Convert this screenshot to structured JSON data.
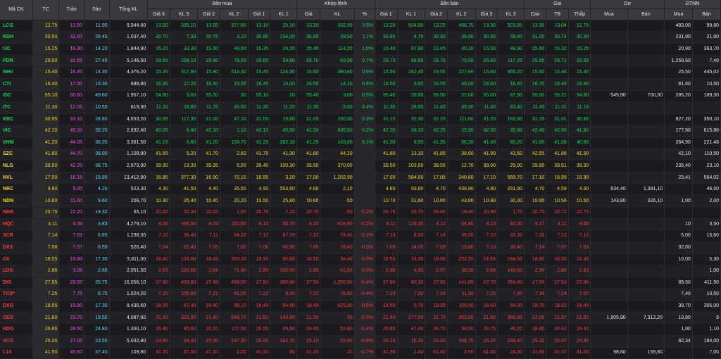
{
  "headers": {
    "symbol": "Mã CK",
    "ref": "TC",
    "ceil": "Trần",
    "floor": "Sàn",
    "total_vol": "Tổng KL",
    "buy_group": "Bên mua",
    "match_group": "Khớp lệnh",
    "sell_group": "Bên bán",
    "price_group": "Giá",
    "remain_group": "Dư",
    "foreign_group": "ĐTNN",
    "buy_cols": [
      "Giá 3",
      "KL 3",
      "Giá 2",
      "KL 2",
      "Giá 1",
      "KL 1"
    ],
    "match_cols": [
      "Giá",
      "KL",
      "%"
    ],
    "sell_cols": [
      "Giá 1",
      "KL 1",
      "Giá 2",
      "KL 2",
      "Giá 3",
      "KL 3"
    ],
    "price_cols": [
      "Cao",
      "TB",
      "Thấp"
    ],
    "remain_cols": [
      "Mua",
      "Bán"
    ],
    "foreign_cols": [
      "Mua",
      "Bán"
    ]
  },
  "colors": {
    "up": "#00e04b",
    "down": "#ff3b3b",
    "ref": "#f5d700",
    "ceil": "#ff4bf0",
    "floor": "#5ad8ff"
  },
  "rows": [
    {
      "sym": "LCG",
      "s": "u",
      "ref": "12.75",
      "ceil": "13.60",
      "floor": "11.90",
      "vol": "9,944.60",
      "b3": "13.00",
      "bv3": "335,10",
      "b2": "13.05",
      "bv2": "377,50",
      "b1": "13.10",
      "bv1": "25,10",
      "mp": "13.20",
      "mv": "332,90",
      "pct": "3.5%",
      "a1": "13.20",
      "av1": "524,60",
      "a2": "13.25",
      "av2": "466,70",
      "a3": "13.30",
      "av3": "523,60",
      "hi": "13.30",
      "avg": "13.04",
      "lo": "12.75",
      "rb": "",
      "rs": "",
      "fb": "483,00",
      "fs": "99,80"
    },
    {
      "sym": "KDH",
      "s": "u",
      "ref": "30.50",
      "ceil": "32.60",
      "floor": "28.40",
      "vol": "1,037,40",
      "b3": "30.70",
      "bv3": "7,30",
      "b2": "30.75",
      "bv2": "3,10",
      "b1": "30.80",
      "bv1": "234,00",
      "mp": "30.85",
      "mv": "39,50",
      "pct": "1.1%",
      "a1": "30.85",
      "av1": "4,70",
      "a2": "30.90",
      "av2": "39,90",
      "a3": "30.95",
      "av3": "39,40",
      "hi": "31.00",
      "avg": "30.74",
      "lo": "30.50",
      "rb": "",
      "rs": "",
      "fb": "231,90",
      "fs": "21,60"
    },
    {
      "sym": "IJC",
      "s": "u",
      "ref": "15.25",
      "ceil": "16.30",
      "floor": "14.20",
      "vol": "1,844,90",
      "b3": "15.25",
      "bv3": "33,30",
      "b2": "15.30",
      "bv2": "49,50",
      "b1": "15.35",
      "bv1": "24,20",
      "mp": "15.40",
      "mv": "114,20",
      "pct": "1.0%",
      "a1": "15.40",
      "av1": "97,80",
      "a2": "15.45",
      "av2": "40,20",
      "a3": "15.50",
      "av3": "48,90",
      "hi": "15.60",
      "avg": "15.32",
      "lo": "15.25",
      "rb": "",
      "rs": "",
      "fb": "20,90",
      "fs": "363,70"
    },
    {
      "sym": "PDR",
      "s": "u",
      "ref": "29.50",
      "ceil": "31.55",
      "floor": "27.45",
      "vol": "5,146,50",
      "b3": "29.55",
      "bv3": "208,10",
      "b2": "29.60",
      "bv2": "78,50",
      "b1": "29.65",
      "bv1": "59,80",
      "mp": "29.70",
      "mv": "69,90",
      "pct": "0.7%",
      "a1": "29.70",
      "av1": "66,50",
      "a2": "29.75",
      "av2": "70,50",
      "a3": "29.80",
      "av3": "117,20",
      "hi": "29.95",
      "avg": "29.71",
      "lo": "29.55",
      "rb": "",
      "rs": "",
      "fb": "1,259,60",
      "fs": "7,40"
    },
    {
      "sym": "NHV",
      "s": "u",
      "ref": "15.40",
      "ceil": "16.45",
      "floor": "14.35",
      "vol": "4,376,20",
      "b3": "15.35",
      "bv3": "317,80",
      "b2": "15.40",
      "bv2": "513,30",
      "b1": "15.45",
      "bv1": "124,90",
      "mp": "15.50",
      "mv": "360,80",
      "pct": "0.6%",
      "a1": "15.50",
      "av1": "162,40",
      "a2": "15.55",
      "av2": "227,60",
      "a3": "15.60",
      "av3": "555,20",
      "hi": "15.60",
      "avg": "15.46",
      "lo": "15.40",
      "rb": "",
      "rs": "",
      "fb": "25,50",
      "fs": "445,02"
    },
    {
      "sym": "CTI",
      "s": "u",
      "ref": "16.40",
      "ceil": "17.50",
      "floor": "15.30",
      "vol": "688,80",
      "b3": "16.35",
      "bv3": "17,20",
      "b2": "16.40",
      "bv2": "23,00",
      "b1": "16.45",
      "bv1": "14,00",
      "mp": "16.50",
      "mv": "14,10",
      "pct": "0.6%",
      "a1": "16.50",
      "av1": "3,90",
      "a2": "16.55",
      "av2": "48,00",
      "a3": "16.60",
      "av3": "16,60",
      "hi": "16.70",
      "avg": "16.49",
      "lo": "16.40",
      "rb": "",
      "rs": "",
      "fb": "81,60",
      "fs": "10,50"
    },
    {
      "sym": "IDC",
      "s": "u",
      "ref": "55.10",
      "ceil": "60.60",
      "floor": "49.60",
      "vol": "1,957,10",
      "b3": "54.90",
      "bv3": "3,00",
      "b2": "55.00",
      "bv2": "30",
      "b1": "55.10",
      "bv1": "20",
      "mp": "55.40",
      "mv": "3,00",
      "pct": "0.5%",
      "a1": "55.40",
      "av1": "20,60",
      "a2": "55.50",
      "av2": "37,00",
      "a3": "55.60",
      "av3": "67,90",
      "hi": "55.90",
      "avg": "55.21",
      "lo": "54.60",
      "rb": "545,90",
      "rs": "700,30",
      "fb": "285,20",
      "fs": "189,30"
    },
    {
      "sym": "ITC",
      "s": "u",
      "ref": "11.30",
      "ceil": "12.05",
      "floor": "10.55",
      "vol": "619,30",
      "b3": "11.20",
      "bv3": "19,80",
      "b2": "11.25",
      "bv2": "45,60",
      "b1": "11.30",
      "bv1": "11,20",
      "mp": "11.35",
      "mv": "5,00",
      "pct": "0.4%",
      "a1": "11.35",
      "av1": "26,90",
      "a2": "11.40",
      "av2": "49,30",
      "a3": "11.45",
      "av3": "63,40",
      "hi": "11.45",
      "avg": "11.31",
      "lo": "11.15",
      "rb": "",
      "rs": "",
      "fb": "",
      "fs": ""
    },
    {
      "sym": "KBC",
      "s": "u",
      "ref": "30.95",
      "ceil": "33.10",
      "floor": "28.80",
      "vol": "4,653,20",
      "b3": "30.95",
      "bv3": "117,30",
      "b2": "31.00",
      "bv2": "47,10",
      "b1": "31.05",
      "bv1": "19,80",
      "mp": "31.05",
      "mv": "190,50",
      "pct": "0.3%",
      "a1": "31.10",
      "av1": "32,30",
      "a2": "31.15",
      "av2": "111,60",
      "a3": "31.20",
      "av3": "183,90",
      "hi": "31.25",
      "avg": "31.01",
      "lo": "30.85",
      "rb": "",
      "rs": "",
      "fb": "827,20",
      "fs": "350,10"
    },
    {
      "sym": "VIC",
      "s": "u",
      "ref": "42.10",
      "ceil": "45.00",
      "floor": "39.20",
      "vol": "2,692,40",
      "b3": "42.05",
      "bv3": "6,40",
      "b2": "42.10",
      "bv2": "1,10",
      "b1": "42.15",
      "bv1": "45,50",
      "mp": "42.20",
      "mv": "435,50",
      "pct": "0.2%",
      "a1": "42.20",
      "av1": "24,10",
      "a2": "42.25",
      "av2": "15,90",
      "a3": "42.30",
      "av3": "35,90",
      "hi": "42.40",
      "avg": "42.00",
      "lo": "41.80",
      "rb": "",
      "rs": "",
      "fb": "177,60",
      "fs": "615,80"
    },
    {
      "sym": "VHM",
      "s": "u",
      "ref": "41.20",
      "ceil": "44.05",
      "floor": "38.35",
      "vol": "3,361,50",
      "b3": "41.15",
      "bv3": "6,80",
      "b2": "41.20",
      "bv2": "158,70",
      "b1": "41.25",
      "bv1": "262,10",
      "mp": "41.25",
      "mv": "143,00",
      "pct": "0.1%",
      "a1": "41.30",
      "av1": "6,90",
      "a2": "41.35",
      "av2": "56,30",
      "a3": "41.40",
      "av3": "89,20",
      "hi": "41.60",
      "avg": "41.08",
      "lo": "40.80",
      "rb": "",
      "rs": "",
      "fb": "264,90",
      "fs": "221,46"
    },
    {
      "sym": "SZC",
      "s": "r",
      "ref": "41.80",
      "ceil": "44.70",
      "floor": "38.90",
      "vol": "1,109,90",
      "b3": "41.65",
      "bv3": "5,20",
      "b2": "41.70",
      "bv2": "2,60",
      "b1": "41.75",
      "bv1": "41,30",
      "mp": "41.80",
      "mv": "44,10",
      "pct": "",
      "a1": "41.80",
      "av1": "13,10",
      "a2": "41.85",
      "av2": "38,60",
      "a3": "41.90",
      "av3": "43,50",
      "hi": "42.55",
      "avg": "41.86",
      "lo": "41.50",
      "rb": "",
      "rs": "",
      "fb": "42,10",
      "fs": "110,50"
    },
    {
      "sym": "NLG",
      "s": "r",
      "ref": "39.50",
      "ceil": "42.25",
      "floor": "36.75",
      "vol": "2,673,90",
      "b3": "39.30",
      "bv3": "13,30",
      "b2": "39.35",
      "bv2": "6,00",
      "b1": "39.40",
      "bv1": "100,30",
      "mp": "39.50",
      "mv": "370,00",
      "pct": "",
      "a1": "39.50",
      "av1": "103,50",
      "a2": "39.55",
      "av2": "12,70",
      "a3": "39.60",
      "av3": "29,00",
      "hi": "39.90",
      "avg": "39.51",
      "lo": "39.30",
      "rb": "",
      "rs": "",
      "fb": "235,40",
      "fs": "23,10"
    },
    {
      "sym": "NVL",
      "s": "r",
      "ref": "17.00",
      "ceil": "18.15",
      "floor": "15.85",
      "vol": "13,412,90",
      "b3": "16.85",
      "bv3": "377,30",
      "b2": "16.90",
      "bv2": "72,10",
      "b1": "16.95",
      "bv1": "3,20",
      "mp": "17.00",
      "mv": "1,202,90",
      "pct": "",
      "a1": "17.00",
      "av1": "584,00",
      "a2": "17.05",
      "av2": "240,60",
      "a3": "17.10",
      "av3": "559,70",
      "hi": "17.10",
      "avg": "16.99",
      "lo": "16.90",
      "rb": "",
      "rs": "",
      "fb": "29,41",
      "fs": "564,02"
    },
    {
      "sym": "NRC",
      "s": "r",
      "ref": "4.60",
      "ceil": "5.00",
      "floor": "4.20",
      "vol": "523,30",
      "b3": "4.30",
      "bv3": "41,50",
      "b2": "4.40",
      "bv2": "35,50",
      "b1": "4.50",
      "bv1": "553,60",
      "mp": "4.60",
      "mv": "2,10",
      "pct": "",
      "a1": "4.60",
      "av1": "93,60",
      "a2": "4.70",
      "av2": "439,90",
      "a3": "4.80",
      "av3": "251,90",
      "hi": "4.70",
      "avg": "4.59",
      "lo": "4.50",
      "rb": "634,40",
      "rs": "1,391,10",
      "fb": "",
      "fs": "46,50"
    },
    {
      "sym": "NDN",
      "s": "r",
      "ref": "10.60",
      "ceil": "11.60",
      "floor": "9.60",
      "vol": "209,70",
      "b3": "10.30",
      "bv3": "26,40",
      "b2": "10.40",
      "bv2": "20,20",
      "b1": "10.50",
      "bv1": "25,80",
      "mp": "10.60",
      "mv": "50",
      "pct": "",
      "a1": "10.70",
      "av1": "31,60",
      "a2": "10.80",
      "av2": "43,80",
      "a3": "10.90",
      "av3": "30,00",
      "hi": "10.80",
      "avg": "10.56",
      "lo": "10.50",
      "rb": "143,80",
      "rs": "326,10",
      "fb": "1,00",
      "fs": "2,00"
    },
    {
      "sym": "NBB",
      "s": "d",
      "ref": "20.75",
      "ceil": "22.20",
      "floor": "19.30",
      "vol": "65,10",
      "b3": "20.60",
      "bv3": "20,30",
      "b2": "20.65",
      "bv2": "1,80",
      "b1": "20.70",
      "bv1": "7,20",
      "mp": "20.70",
      "mv": "60",
      "pct": "-0.2%",
      "a1": "20.75",
      "av1": "20,70",
      "a2": "20.80",
      "av2": "19,40",
      "a3": "20.90",
      "av3": "1,70",
      "hi": "20.75",
      "avg": "20.72",
      "lo": "20.70",
      "rb": "",
      "rs": "",
      "fb": "",
      "fs": ""
    },
    {
      "sym": "HQC",
      "s": "d",
      "ref": "4.11",
      "ceil": "4.39",
      "floor": "3.83",
      "vol": "4,279,10",
      "b3": "4.08",
      "bv3": "335,90",
      "b2": "4.09",
      "bv2": "310,60",
      "b1": "4.10",
      "bv1": "55,70",
      "mp": "4.10",
      "mv": "416,90",
      "pct": "-0.2%",
      "a1": "4.11",
      "av1": "128,30",
      "a2": "4.12",
      "av2": "54,80",
      "a3": "4.13",
      "av3": "60,30",
      "hi": "4.17",
      "avg": "4.11",
      "lo": "4.08",
      "rb": "",
      "rs": "",
      "fb": "10",
      "fs": "3,50"
    },
    {
      "sym": "SCR",
      "s": "d",
      "ref": "7.14",
      "ceil": "7.63",
      "floor": "6.65",
      "vol": "1,238,30",
      "b3": "7.10",
      "bv3": "39,40",
      "b2": "7.11",
      "bv2": "54,20",
      "b1": "7.12",
      "bv1": "87,70",
      "mp": "7.12",
      "mv": "78,40",
      "pct": "-0.3%",
      "a1": "7.13",
      "av1": "8,30",
      "a2": "7.14",
      "av2": "36,00",
      "a3": "7.15",
      "av3": "33,30",
      "hi": "7.20",
      "avg": "7.13",
      "lo": "7.10",
      "rb": "",
      "rs": "",
      "fb": "5,00",
      "fs": "15,60"
    },
    {
      "sym": "DXS",
      "s": "d",
      "ref": "7.08",
      "ceil": "7.57",
      "floor": "6.59",
      "vol": "526,40",
      "b3": "7.04",
      "bv3": "22,40",
      "b2": "7.05",
      "bv2": "7,00",
      "b1": "7.06",
      "bv1": "66,90",
      "mp": "7.06",
      "mv": "78,40",
      "pct": "-0.3%",
      "a1": "7.08",
      "av1": "14,00",
      "a2": "7.09",
      "av2": "15,80",
      "a3": "7.10",
      "av3": "38,40",
      "hi": "7.14",
      "avg": "7.07",
      "lo": "7.03",
      "rb": "",
      "rs": "",
      "fb": "32,00",
      "fs": ""
    },
    {
      "sym": "CII",
      "s": "d",
      "ref": "18.55",
      "ceil": "19.80",
      "floor": "17.30",
      "vol": "5,811,00",
      "b3": "18.40",
      "bv3": "133,80",
      "b2": "18.45",
      "bv2": "353,20",
      "b1": "18.50",
      "bv1": "85,60",
      "mp": "18.50",
      "mv": "34,40",
      "pct": "-0.3%",
      "a1": "18.55",
      "av1": "18,30",
      "a2": "18.60",
      "av2": "232,20",
      "a3": "18.65",
      "av3": "294,50",
      "hi": "18.80",
      "avg": "18.55",
      "lo": "18.40",
      "rb": "",
      "rs": "",
      "fb": "10,00",
      "fs": "5,30"
    },
    {
      "sym": "LDG",
      "s": "d",
      "ref": "2.86",
      "ceil": "3.06",
      "floor": "2.66",
      "vol": "2,051,50",
      "b3": "2.83",
      "bv3": "122,60",
      "b2": "2.84",
      "bv2": "71,40",
      "b1": "2.85",
      "bv1": "106,50",
      "mp": "2.85",
      "mv": "61,60",
      "pct": "-0.3%",
      "a1": "2.86",
      "av1": "4,90",
      "a2": "2.87",
      "av2": "38,50",
      "a3": "2.88",
      "av3": "149,60",
      "hi": "2.90",
      "avg": "2.86",
      "lo": "2.83",
      "rb": "",
      "rs": "",
      "fb": "",
      "fs": "1,00"
    },
    {
      "sym": "DIG",
      "s": "d",
      "ref": "27.65",
      "ceil": "29.55",
      "floor": "25.75",
      "vol": "16,056,10",
      "b3": "27.40",
      "bv3": "433,80",
      "b2": "27.45",
      "bv2": "499,60",
      "b1": "27.50",
      "bv1": "360,50",
      "mp": "27.55",
      "mv": "1,256,90",
      "pct": "-0.4%",
      "a1": "27.60",
      "av1": "80,10",
      "a2": "27.65",
      "av2": "141,00",
      "a3": "27.70",
      "av3": "264,60",
      "hi": "27.95",
      "avg": "27.63",
      "lo": "27.45",
      "rb": "",
      "rs": "",
      "fb": "89,50",
      "fs": "411,90"
    },
    {
      "sym": "TCD*",
      "s": "d",
      "ref": "7.25",
      "ceil": "7.75",
      "floor": "6.75",
      "vol": "1,024,20",
      "b3": "7.20",
      "bv3": "105,80",
      "b2": "7.21",
      "bv2": "91,20",
      "b1": "7.22",
      "bv1": "8,00",
      "mp": "7.22",
      "mv": "76,60",
      "pct": "-0.4%",
      "a1": "7.23",
      "av1": "7,20",
      "a2": "7.24",
      "av2": "11,30",
      "a3": "7.25",
      "av3": "7,80",
      "hi": "7.34",
      "avg": "7.24",
      "lo": "7.20",
      "rb": "",
      "rs": "",
      "fb": "7,40",
      "fs": "10,50"
    },
    {
      "sym": "DXG",
      "s": "d",
      "ref": "18.55",
      "ceil": "19.80",
      "floor": "17.30",
      "vol": "8,436,60",
      "b3": "18.35",
      "bv3": "47,40",
      "b2": "18.40",
      "bv2": "98,10",
      "b1": "18.45",
      "bv1": "54,90",
      "mp": "18.45",
      "mv": "625,90",
      "pct": "-0.5%",
      "a1": "18.50",
      "av1": "5,70",
      "a2": "18.55",
      "av2": "105,50",
      "a3": "18.60",
      "av3": "94,00",
      "hi": "18.70",
      "avg": "18.53",
      "lo": "18.45",
      "rb": "",
      "rs": "",
      "fb": "39,70",
      "fs": "305,00"
    },
    {
      "sym": "CEO",
      "s": "d",
      "ref": "21.60",
      "ceil": "23.70",
      "floor": "19.50",
      "vol": "4,087,60",
      "b3": "21.30",
      "bv3": "323,30",
      "b2": "21.40",
      "bv2": "649,70",
      "b1": "21.50",
      "bv1": "143,80",
      "mp": "21.50",
      "mv": "30",
      "pct": "-0.5%",
      "a1": "21.60",
      "av1": "277,60",
      "a2": "21.70",
      "av2": "363,80",
      "a3": "21.80",
      "av3": "369,90",
      "hi": "22.00",
      "avg": "21.57",
      "lo": "21.50",
      "rb": "1,905,90",
      "rs": "7,312,20",
      "fb": "10,80",
      "fs": "9"
    },
    {
      "sym": "HDG",
      "s": "d",
      "ref": "26.65",
      "ceil": "28.50",
      "floor": "24.80",
      "vol": "1,350,10",
      "b3": "26.45",
      "bv3": "45,60",
      "b2": "26.50",
      "bv2": "107,90",
      "b1": "26.55",
      "bv1": "25,60",
      "mp": "26.55",
      "mv": "52,80",
      "pct": "-0.4%",
      "a1": "26.65",
      "av1": "47,40",
      "a2": "26.70",
      "av2": "30,50",
      "a3": "26.75",
      "av3": "46,20",
      "hi": "26.85",
      "avg": "26.62",
      "lo": "26.50",
      "rb": "",
      "rs": "",
      "fb": "1,00",
      "fs": "1,10"
    },
    {
      "sym": "VCG",
      "s": "d",
      "ref": "25.30",
      "ceil": "27.05",
      "floor": "23.55",
      "vol": "5,032,80",
      "b3": "24.95",
      "bv3": "94,00",
      "b2": "25.00",
      "bv2": "247,30",
      "b1": "25.05",
      "bv1": "182,70",
      "mp": "25.10",
      "mv": "55,50",
      "pct": "-0.8%",
      "a1": "25.15",
      "av1": "10,20",
      "a2": "25.20",
      "av2": "166,70",
      "a3": "25.25",
      "av3": "158,40",
      "hi": "25.20",
      "avg": "25.07",
      "lo": "24.95",
      "rb": "",
      "rs": "",
      "fb": "82,34",
      "fs": "184,00"
    },
    {
      "sym": "L14",
      "s": "d",
      "ref": "41.50",
      "ceil": "45.60",
      "floor": "37.40",
      "vol": "109,80",
      "b3": "41.00",
      "bv3": "37,00",
      "b2": "41.10",
      "bv2": "2,00",
      "b1": "41.20",
      "bv1": "80",
      "mp": "41.20",
      "mv": "20",
      "pct": "-0.7%",
      "a1": "41.30",
      "av1": "1,40",
      "a2": "41.40",
      "av2": "3,50",
      "a3": "41.50",
      "av3": "24,30",
      "hi": "41.80",
      "avg": "41.37",
      "lo": "41.00",
      "rb": "98,60",
      "rs": "155,80",
      "fb": "",
      "fs": "7,00"
    }
  ]
}
